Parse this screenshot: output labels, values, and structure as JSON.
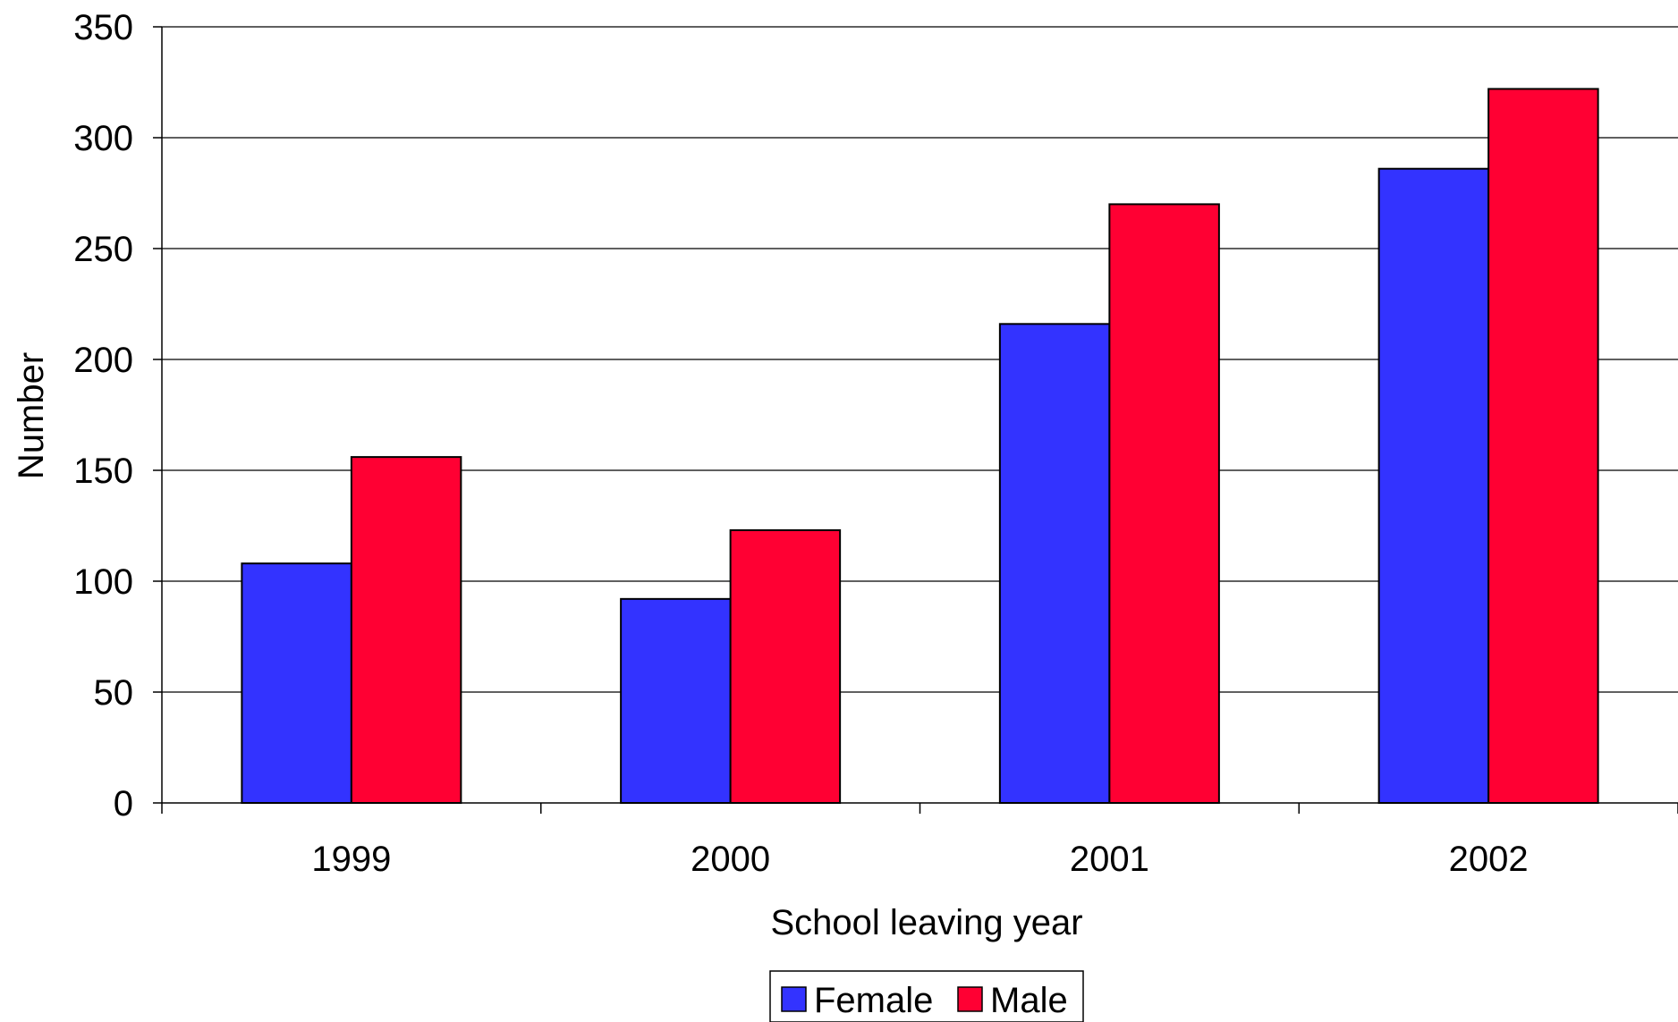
{
  "chart_data": {
    "type": "bar",
    "title": "",
    "xlabel": "School leaving year",
    "ylabel": "Number",
    "categories": [
      "1999",
      "2000",
      "2001",
      "2002"
    ],
    "series": [
      {
        "name": "Female",
        "color": "#3333ff",
        "values": [
          108,
          92,
          216,
          286
        ]
      },
      {
        "name": "Male",
        "color": "#ff0033",
        "values": [
          156,
          123,
          270,
          322
        ]
      }
    ],
    "ylim": [
      0,
      350
    ],
    "yticks": [
      0,
      50,
      100,
      150,
      200,
      250,
      300,
      350
    ],
    "grid": true,
    "legend_position": "bottom-center"
  }
}
